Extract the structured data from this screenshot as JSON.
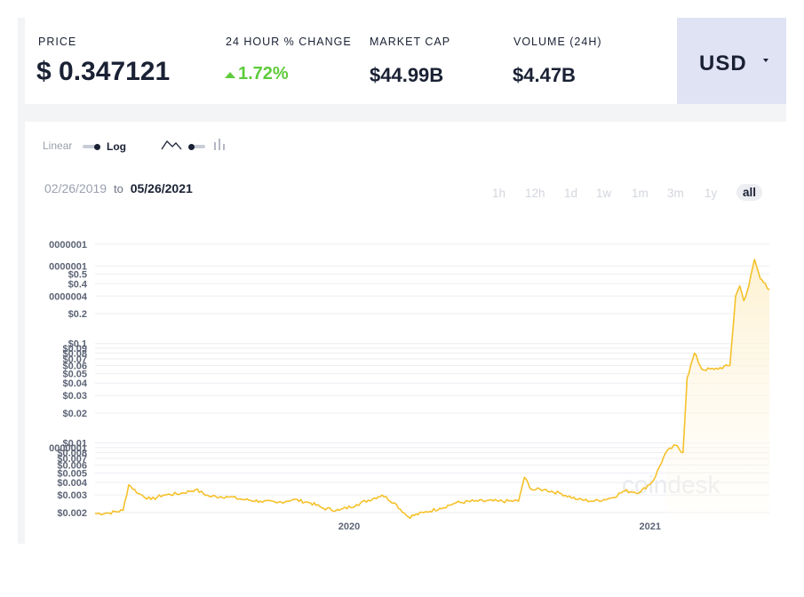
{
  "stats": {
    "price_label": "PRICE",
    "price_value": "$ 0.347121",
    "change_label": "24 HOUR % CHANGE",
    "change_value": "1.72%",
    "market_cap_label": "MARKET CAP",
    "market_cap_value": "$44.99B",
    "volume_label": "VOLUME (24H)",
    "volume_value": "$4.47B"
  },
  "currency": {
    "label": "USD"
  },
  "controls": {
    "linear_label": "Linear",
    "log_label": "Log",
    "start_date": "02/26/2019",
    "to_label": "to",
    "end_date": "05/26/2021",
    "ranges": [
      "1h",
      "12h",
      "1d",
      "1w",
      "1m",
      "3m",
      "1y",
      "all"
    ],
    "active_range": "all"
  },
  "watermark": "coindesk",
  "colors": {
    "line": "#f5c12a",
    "accent_up": "#5ecb3a",
    "usd_bg": "#dfe3f3"
  },
  "icons": [
    "line-chart-icon",
    "bar-chart-icon",
    "caret-down-icon"
  ],
  "chart_data": {
    "type": "area",
    "scale": "log",
    "grid": true,
    "ylim": [
      0.0018,
      1.3
    ],
    "y_tick_labels": [
      {
        "v": 1.0,
        "t": "0000001"
      },
      {
        "v": 0.6,
        "t": "0000001"
      },
      {
        "v": 0.5,
        "t": "$0.5"
      },
      {
        "v": 0.4,
        "t": "$0.4"
      },
      {
        "v": 0.3,
        "t": "0000004"
      },
      {
        "v": 0.2,
        "t": "$0.2"
      },
      {
        "v": 0.1,
        "t": "$0.1"
      },
      {
        "v": 0.09,
        "t": "$0.09"
      },
      {
        "v": 0.08,
        "t": "$0.08"
      },
      {
        "v": 0.07,
        "t": "$0.07"
      },
      {
        "v": 0.06,
        "t": "$0.06"
      },
      {
        "v": 0.05,
        "t": "$0.05"
      },
      {
        "v": 0.04,
        "t": "$0.04"
      },
      {
        "v": 0.03,
        "t": "$0.03"
      },
      {
        "v": 0.02,
        "t": "$0.02"
      },
      {
        "v": 0.01,
        "t": "$0.01"
      },
      {
        "v": 0.009,
        "t": "0000001"
      },
      {
        "v": 0.008,
        "t": "$0.008"
      },
      {
        "v": 0.007,
        "t": "$0.007"
      },
      {
        "v": 0.006,
        "t": "$0.006"
      },
      {
        "v": 0.005,
        "t": "$0.005"
      },
      {
        "v": 0.004,
        "t": "$0.004"
      },
      {
        "v": 0.003,
        "t": "$0.003"
      },
      {
        "v": 0.002,
        "t": "$0.002"
      }
    ],
    "x_ticks": [
      {
        "label": "2020",
        "x": "2020-01-01"
      },
      {
        "label": "2021",
        "x": "2021-01-01"
      }
    ],
    "x_range": [
      "2019-02-26",
      "2021-05-26"
    ],
    "series": [
      {
        "points": [
          [
            "2019-02-26",
            0.00195
          ],
          [
            "2019-03-15",
            0.00198
          ],
          [
            "2019-04-01",
            0.0021
          ],
          [
            "2019-04-08",
            0.0038
          ],
          [
            "2019-04-20",
            0.0031
          ],
          [
            "2019-05-05",
            0.0027
          ],
          [
            "2019-05-20",
            0.003
          ],
          [
            "2019-06-10",
            0.0031
          ],
          [
            "2019-06-28",
            0.0034
          ],
          [
            "2019-07-15",
            0.0029
          ],
          [
            "2019-08-05",
            0.0029
          ],
          [
            "2019-08-25",
            0.0027
          ],
          [
            "2019-09-15",
            0.0026
          ],
          [
            "2019-10-05",
            0.0025
          ],
          [
            "2019-10-25",
            0.0027
          ],
          [
            "2019-11-15",
            0.0025
          ],
          [
            "2019-12-01",
            0.0022
          ],
          [
            "2019-12-20",
            0.0021
          ],
          [
            "2020-01-10",
            0.0024
          ],
          [
            "2020-02-10",
            0.003
          ],
          [
            "2020-02-25",
            0.0025
          ],
          [
            "2020-03-13",
            0.0018
          ],
          [
            "2020-04-01",
            0.002
          ],
          [
            "2020-04-20",
            0.0022
          ],
          [
            "2020-05-10",
            0.0025
          ],
          [
            "2020-06-01",
            0.0026
          ],
          [
            "2020-07-01",
            0.0026
          ],
          [
            "2020-07-25",
            0.0026
          ],
          [
            "2020-08-01",
            0.0045
          ],
          [
            "2020-08-10",
            0.0034
          ],
          [
            "2020-08-25",
            0.0034
          ],
          [
            "2020-09-15",
            0.0031
          ],
          [
            "2020-10-05",
            0.0027
          ],
          [
            "2020-10-25",
            0.0026
          ],
          [
            "2020-11-15",
            0.0028
          ],
          [
            "2020-12-01",
            0.0033
          ],
          [
            "2020-12-20",
            0.0032
          ],
          [
            "2021-01-05",
            0.0042
          ],
          [
            "2021-01-20",
            0.008
          ],
          [
            "2021-02-01",
            0.0095
          ],
          [
            "2021-02-10",
            0.008
          ],
          [
            "2021-02-15",
            0.045
          ],
          [
            "2021-02-24",
            0.08
          ],
          [
            "2021-03-05",
            0.055
          ],
          [
            "2021-03-20",
            0.055
          ],
          [
            "2021-04-08",
            0.06
          ],
          [
            "2021-04-15",
            0.3
          ],
          [
            "2021-04-20",
            0.38
          ],
          [
            "2021-04-25",
            0.27
          ],
          [
            "2021-05-01",
            0.38
          ],
          [
            "2021-05-08",
            0.7
          ],
          [
            "2021-05-15",
            0.45
          ],
          [
            "2021-05-21",
            0.4
          ],
          [
            "2021-05-26",
            0.347121
          ]
        ]
      }
    ]
  }
}
